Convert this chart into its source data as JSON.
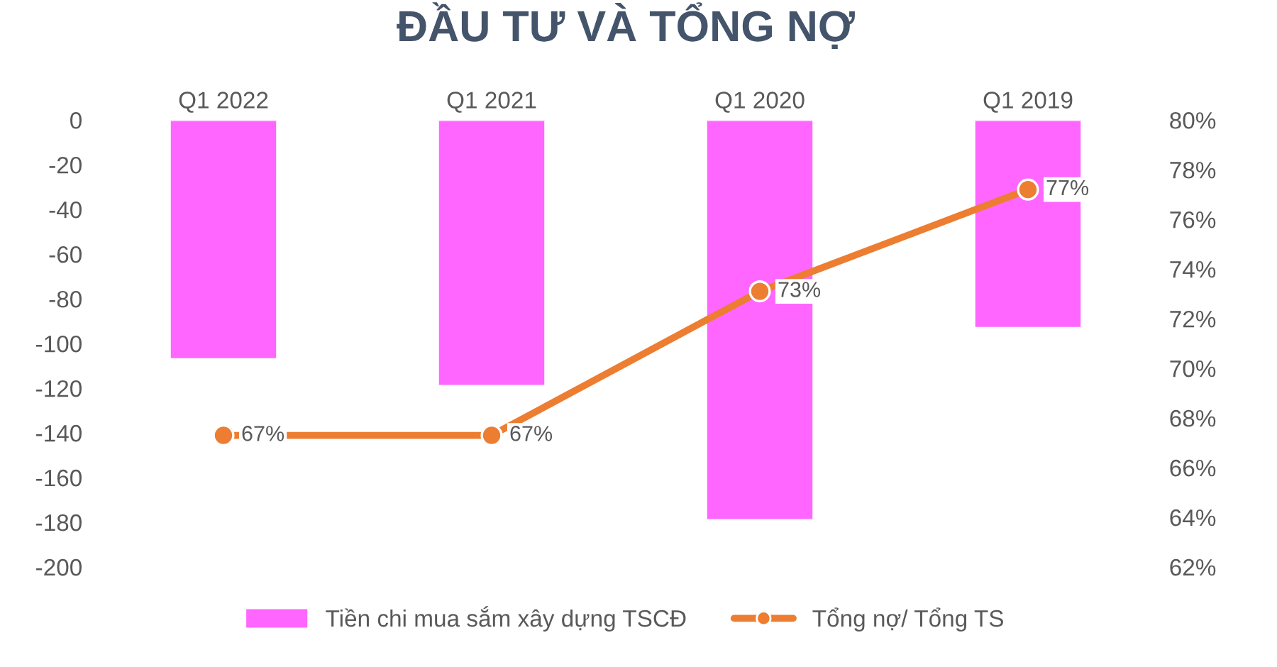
{
  "chart_data": {
    "type": "bar",
    "title": "ĐẦU TƯ VÀ TỔNG NỢ",
    "categories": [
      "Q1 2022",
      "Q1 2021",
      "Q1 2020",
      "Q1 2019"
    ],
    "series": [
      {
        "name": "Tiền chi mua sắm xây dựng TSCĐ",
        "color": "#ff66ff",
        "values": [
          -107,
          -119,
          -179,
          -93
        ]
      },
      {
        "name": "Tổng nợ/ Tổng TS",
        "type": "line",
        "axis": "y2",
        "color": "#ed7d31",
        "marker": "circle",
        "values": [
          67.3,
          67.3,
          73.1,
          77.2
        ],
        "value_labels": [
          "67%",
          "67%",
          "73%",
          "77%"
        ]
      }
    ],
    "ylim": [
      -200,
      0
    ],
    "yticks": [
      -200,
      -180,
      -160,
      -140,
      -120,
      -100,
      -80,
      -60,
      -40,
      -20,
      0
    ],
    "y2lim": [
      62,
      80
    ],
    "y2ticks": [
      {
        "value": 62,
        "label": "62%"
      },
      {
        "value": 64,
        "label": "64%"
      },
      {
        "value": 66,
        "label": "66%"
      },
      {
        "value": 68,
        "label": "68%"
      },
      {
        "value": 70,
        "label": "70%"
      },
      {
        "value": 72,
        "label": "72%"
      },
      {
        "value": 74,
        "label": "74%"
      },
      {
        "value": 76,
        "label": "76%"
      },
      {
        "value": 78,
        "label": "78%"
      },
      {
        "value": 80,
        "label": "80%"
      }
    ],
    "grid": false,
    "legend": "bottom"
  }
}
